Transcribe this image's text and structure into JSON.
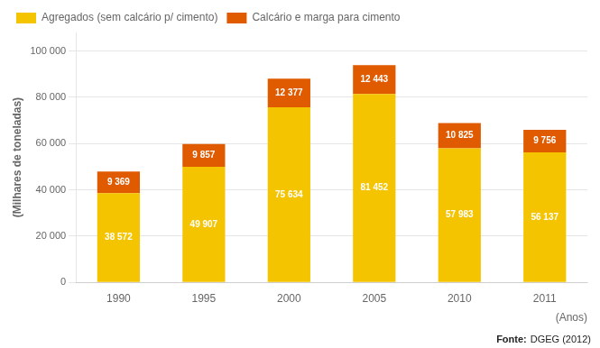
{
  "chart_data": {
    "type": "bar",
    "stacked": true,
    "categories": [
      "1990",
      "1995",
      "2000",
      "2005",
      "2010",
      "2011"
    ],
    "series": [
      {
        "name": "Agregados (sem calcário p/ cimento)",
        "color": "#F5C400",
        "values": [
          38572,
          49907,
          75634,
          81452,
          57983,
          56137
        ],
        "value_labels": [
          "38 572",
          "49 907",
          "75 634",
          "81 452",
          "57 983",
          "56 137"
        ]
      },
      {
        "name": "Calcário e marga para cimento",
        "color": "#E05A00",
        "values": [
          9369,
          9857,
          12377,
          12443,
          10825,
          9756
        ],
        "value_labels": [
          "9 369",
          "9 857",
          "12 377",
          "12 443",
          "10 825",
          "9 756"
        ]
      }
    ],
    "ylabel": "(Milhares de toneladas)",
    "xlabel": "(Anos)",
    "ylim": [
      0,
      108000
    ],
    "yticks": [
      0,
      {
        "value": 20000,
        "label": "20 000"
      },
      {
        "value": 40000,
        "label": "40 000"
      },
      {
        "value": 60000,
        "label": "60 000"
      },
      {
        "value": 80000,
        "label": "80 000"
      },
      {
        "value": 100000,
        "label": "100 000"
      }
    ],
    "grid": true,
    "legend": "upper left",
    "data_labels": true,
    "annotations": [
      "Fonte:",
      "DGEG (2012)"
    ]
  }
}
